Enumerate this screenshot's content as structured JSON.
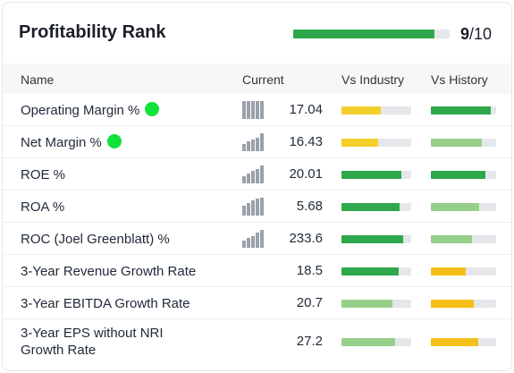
{
  "header": {
    "title": "Profitability Rank",
    "rank_value": "9",
    "rank_total": "/10",
    "rank_fraction": 0.9
  },
  "columns": {
    "name": "Name",
    "current": "Current",
    "vs_industry": "Vs Industry",
    "vs_history": "Vs History"
  },
  "colors": {
    "dark_green": "#2ea84b",
    "light_green": "#96cf8a",
    "yellow": "#f2cf2b",
    "amber": "#f4c017",
    "track": "#e5e7eb",
    "dot": "#12e23b"
  },
  "rows": [
    {
      "name": "Operating Margin %",
      "dot": true,
      "value": "17.04",
      "spark": [
        20,
        20,
        20,
        20,
        20
      ],
      "industry": {
        "fill": 0.57,
        "color": "yellow"
      },
      "history": {
        "fill": 0.92,
        "color": "dark_green"
      }
    },
    {
      "name": "Net Margin %",
      "dot": true,
      "value": "16.43",
      "spark": [
        8,
        11,
        13,
        15,
        20
      ],
      "industry": {
        "fill": 0.52,
        "color": "yellow"
      },
      "history": {
        "fill": 0.78,
        "color": "light_green"
      }
    },
    {
      "name": "ROE %",
      "dot": false,
      "value": "20.01",
      "spark": [
        8,
        11,
        14,
        16,
        20
      ],
      "industry": {
        "fill": 0.86,
        "color": "dark_green"
      },
      "history": {
        "fill": 0.84,
        "color": "dark_green"
      }
    },
    {
      "name": "ROA %",
      "dot": false,
      "value": "5.68",
      "spark": [
        11,
        14,
        17,
        19,
        20
      ],
      "industry": {
        "fill": 0.83,
        "color": "dark_green"
      },
      "history": {
        "fill": 0.74,
        "color": "light_green"
      }
    },
    {
      "name": "ROC (Joel Greenblatt) %",
      "dot": false,
      "value": "233.6",
      "spark": [
        8,
        11,
        13,
        17,
        20
      ],
      "industry": {
        "fill": 0.89,
        "color": "dark_green"
      },
      "history": {
        "fill": 0.63,
        "color": "light_green"
      }
    },
    {
      "name": "3-Year Revenue Growth Rate",
      "dot": false,
      "value": "18.5",
      "spark": [],
      "industry": {
        "fill": 0.82,
        "color": "dark_green"
      },
      "history": {
        "fill": 0.53,
        "color": "amber"
      }
    },
    {
      "name": "3-Year EBITDA Growth Rate",
      "dot": false,
      "value": "20.7",
      "spark": [],
      "industry": {
        "fill": 0.73,
        "color": "light_green"
      },
      "history": {
        "fill": 0.66,
        "color": "amber"
      }
    },
    {
      "name": "3-Year EPS without NRI Growth Rate",
      "dot": false,
      "value": "27.2",
      "spark": [],
      "industry": {
        "fill": 0.77,
        "color": "light_green"
      },
      "history": {
        "fill": 0.73,
        "color": "amber"
      }
    }
  ]
}
